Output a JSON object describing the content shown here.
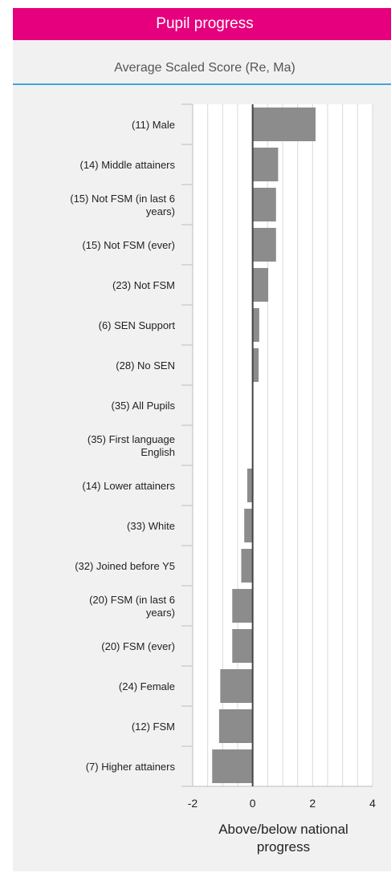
{
  "header": {
    "title": "Pupil progress"
  },
  "subtitle": "Average Scaled Score (Re, Ma)",
  "colors": {
    "header_bg": "#e6007e",
    "accent_rule": "#3ea6d6",
    "bar": "#8c8c8c",
    "panel_bg": "#f1f1f1",
    "zero_line": "#444444",
    "grid": "#d9d9d9"
  },
  "chart_data": {
    "type": "bar",
    "orientation": "horizontal",
    "categories": [
      "(11) Male",
      "(14) Middle attainers",
      "(15) Not FSM (in last 6 years)",
      "(15) Not FSM (ever)",
      "(23) Not FSM",
      "(6) SEN Support",
      "(28) No SEN",
      "(35) All Pupils",
      "(35) First language English",
      "(14) Lower attainers",
      "(33) White",
      "(32) Joined before Y5",
      "(20) FSM (in last 6 years)",
      "(20) FSM (ever)",
      "(24) Female",
      "(12) FSM",
      "(7) Higher attainers"
    ],
    "values": [
      2.1,
      0.85,
      0.78,
      0.78,
      0.52,
      0.22,
      0.2,
      0.0,
      0.0,
      -0.18,
      -0.28,
      -0.38,
      -0.68,
      -0.68,
      -1.08,
      -1.12,
      -1.35
    ],
    "xlabel": "Above/below national progress",
    "xlim": [
      -2,
      4
    ],
    "xticks": [
      -2,
      0,
      2,
      4
    ],
    "grid": true
  }
}
